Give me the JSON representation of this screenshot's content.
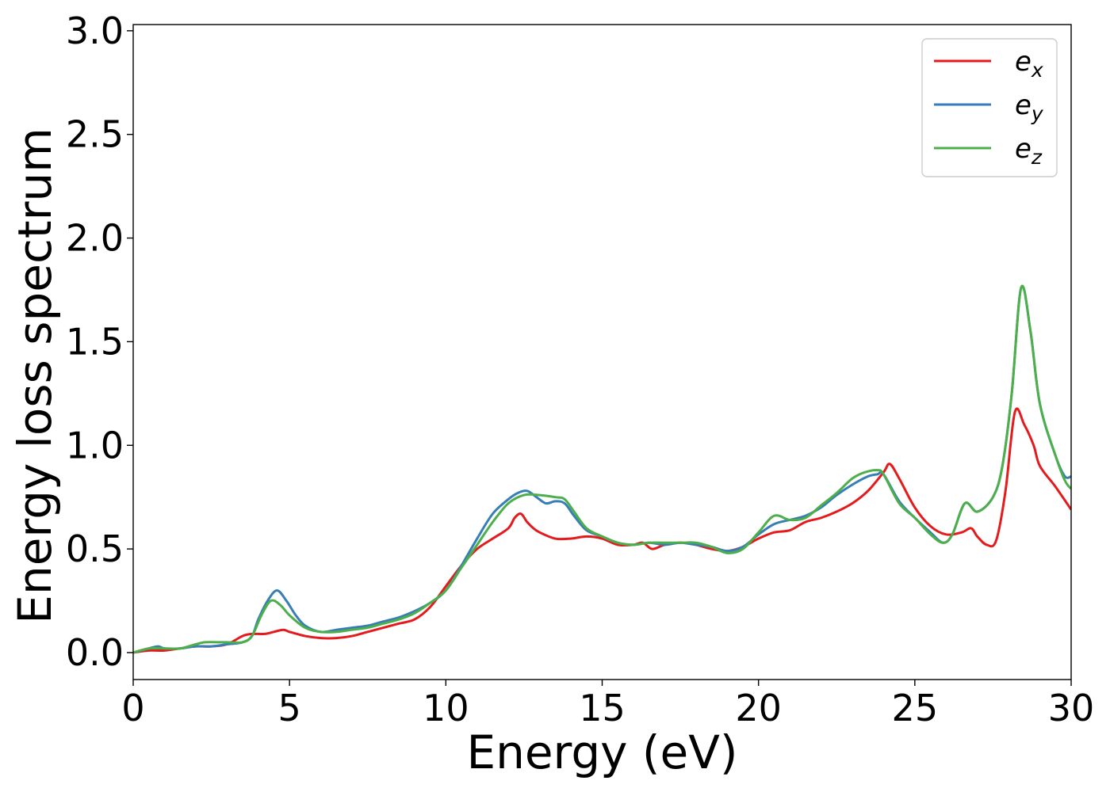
{
  "chart_data": {
    "type": "line",
    "title": "",
    "xlabel": "Energy (eV)",
    "ylabel": "Energy loss spectrum",
    "xlim": [
      0,
      30
    ],
    "ylim": [
      -0.13,
      3.03
    ],
    "xticks": [
      0,
      5,
      10,
      15,
      20,
      25,
      30
    ],
    "xtick_labels": [
      "0",
      "5",
      "10",
      "15",
      "20",
      "25",
      "30"
    ],
    "yticks": [
      0.0,
      0.5,
      1.0,
      1.5,
      2.0,
      2.5,
      3.0
    ],
    "ytick_labels": [
      "0.0",
      "0.5",
      "1.0",
      "1.5",
      "2.0",
      "2.5",
      "3.0"
    ],
    "grid": false,
    "legend_position": "top-right",
    "series": [
      {
        "name": "e_x",
        "label_base": "e",
        "label_sub": "x",
        "color": "#e41a1c",
        "x": [
          0,
          0.5,
          1,
          1.5,
          2,
          2.5,
          3,
          3.5,
          3.8,
          4.2,
          4.5,
          4.8,
          5,
          5.5,
          6,
          6.5,
          7,
          7.5,
          8,
          8.5,
          9,
          9.5,
          10,
          10.5,
          11,
          11.5,
          12,
          12.2,
          12.4,
          12.6,
          12.8,
          13,
          13.5,
          14,
          14.5,
          15,
          15.5,
          16,
          16.3,
          16.6,
          17,
          17.5,
          18,
          18.5,
          19,
          19.5,
          20,
          20.5,
          21,
          21.5,
          22,
          22.5,
          23,
          23.5,
          24,
          24.2,
          24.5,
          25,
          25.5,
          26,
          26.5,
          26.8,
          27,
          27.3,
          27.6,
          27.9,
          28.2,
          28.5,
          28.8,
          29,
          29.5,
          30
        ],
        "y": [
          0.0,
          0.01,
          0.01,
          0.02,
          0.03,
          0.03,
          0.04,
          0.08,
          0.09,
          0.09,
          0.1,
          0.11,
          0.1,
          0.08,
          0.07,
          0.07,
          0.08,
          0.1,
          0.12,
          0.14,
          0.16,
          0.22,
          0.32,
          0.42,
          0.5,
          0.55,
          0.6,
          0.65,
          0.67,
          0.63,
          0.6,
          0.58,
          0.55,
          0.55,
          0.56,
          0.55,
          0.52,
          0.52,
          0.53,
          0.5,
          0.52,
          0.53,
          0.52,
          0.5,
          0.49,
          0.51,
          0.55,
          0.58,
          0.59,
          0.63,
          0.65,
          0.68,
          0.72,
          0.78,
          0.87,
          0.91,
          0.84,
          0.7,
          0.61,
          0.57,
          0.58,
          0.6,
          0.56,
          0.52,
          0.54,
          0.78,
          1.16,
          1.1,
          1.0,
          0.9,
          0.8,
          0.69
        ]
      },
      {
        "name": "e_y",
        "label_base": "e",
        "label_sub": "y",
        "color": "#377eb8",
        "x": [
          0,
          0.5,
          0.8,
          1,
          1.5,
          2,
          2.5,
          3,
          3.5,
          3.8,
          4,
          4.3,
          4.6,
          4.9,
          5.2,
          5.5,
          6,
          6.5,
          7,
          7.5,
          8,
          8.5,
          9,
          9.5,
          10,
          10.5,
          11,
          11.5,
          12,
          12.3,
          12.6,
          12.9,
          13.2,
          13.5,
          13.8,
          14.1,
          14.5,
          15,
          15.5,
          16,
          16.5,
          17,
          17.5,
          18,
          18.5,
          19,
          19.5,
          20,
          20.5,
          21,
          21.5,
          22,
          22.5,
          23,
          23.5,
          23.8,
          24,
          24.5,
          25,
          25.5,
          25.9,
          26.2,
          26.6,
          27,
          27.5,
          27.8,
          28.1,
          28.4,
          28.7,
          29,
          29.5,
          29.8,
          30
        ],
        "y": [
          0.0,
          0.02,
          0.03,
          0.02,
          0.02,
          0.03,
          0.03,
          0.04,
          0.05,
          0.08,
          0.16,
          0.25,
          0.3,
          0.25,
          0.18,
          0.13,
          0.1,
          0.11,
          0.12,
          0.13,
          0.15,
          0.17,
          0.2,
          0.24,
          0.3,
          0.42,
          0.55,
          0.67,
          0.74,
          0.77,
          0.78,
          0.75,
          0.72,
          0.73,
          0.72,
          0.66,
          0.59,
          0.56,
          0.53,
          0.52,
          0.53,
          0.52,
          0.53,
          0.52,
          0.51,
          0.49,
          0.51,
          0.57,
          0.62,
          0.64,
          0.66,
          0.7,
          0.76,
          0.81,
          0.85,
          0.86,
          0.86,
          0.73,
          0.65,
          0.58,
          0.53,
          0.57,
          0.72,
          0.68,
          0.75,
          0.9,
          1.25,
          1.76,
          1.55,
          1.2,
          0.95,
          0.85,
          0.85
        ]
      },
      {
        "name": "e_z",
        "label_base": "e",
        "label_sub": "z",
        "color": "#4daf4a",
        "x": [
          0,
          0.5,
          1,
          1.5,
          2,
          2.3,
          2.7,
          3,
          3.5,
          3.8,
          4.1,
          4.4,
          4.7,
          5,
          5.5,
          6,
          6.5,
          7,
          7.5,
          8,
          8.5,
          9,
          9.5,
          10,
          10.5,
          11,
          11.5,
          12,
          12.5,
          13,
          13.5,
          13.8,
          14.1,
          14.5,
          15,
          15.5,
          16,
          16.5,
          17,
          17.5,
          18,
          18.5,
          19,
          19.5,
          20,
          20.5,
          21,
          21.5,
          22,
          22.5,
          23,
          23.4,
          23.8,
          24,
          24.5,
          25,
          25.5,
          25.9,
          26.2,
          26.6,
          27,
          27.5,
          27.8,
          28.1,
          28.4,
          28.7,
          29,
          29.5,
          29.8,
          30
        ],
        "y": [
          0.0,
          0.02,
          0.02,
          0.02,
          0.04,
          0.05,
          0.05,
          0.05,
          0.05,
          0.08,
          0.18,
          0.25,
          0.23,
          0.18,
          0.12,
          0.1,
          0.1,
          0.11,
          0.12,
          0.14,
          0.16,
          0.19,
          0.24,
          0.3,
          0.41,
          0.52,
          0.63,
          0.72,
          0.76,
          0.76,
          0.75,
          0.74,
          0.68,
          0.6,
          0.56,
          0.53,
          0.52,
          0.53,
          0.53,
          0.53,
          0.53,
          0.51,
          0.48,
          0.5,
          0.58,
          0.66,
          0.64,
          0.65,
          0.71,
          0.77,
          0.84,
          0.87,
          0.88,
          0.86,
          0.72,
          0.65,
          0.57,
          0.53,
          0.57,
          0.72,
          0.68,
          0.75,
          0.9,
          1.25,
          1.76,
          1.55,
          1.2,
          0.95,
          0.83,
          0.79
        ]
      }
    ]
  }
}
